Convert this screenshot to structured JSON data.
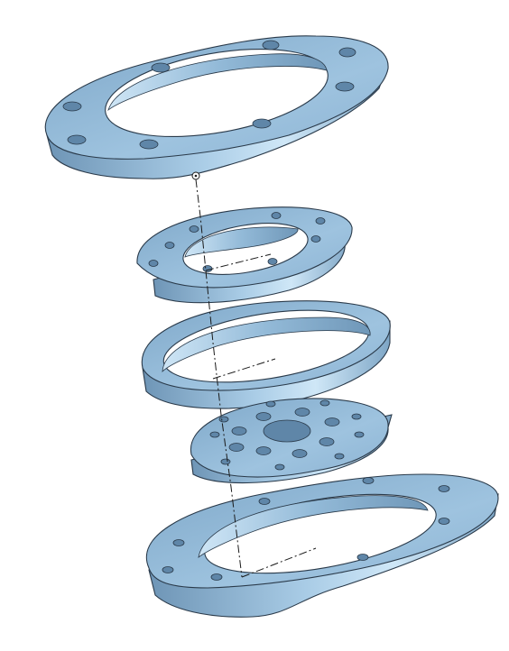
{
  "view": {
    "kind": "exploded-assembly",
    "part_color": "#8fb6d6",
    "part_highlight": "#c9e2f4",
    "part_shadow": "#5f86a8",
    "edge_color": "#2a3a4a",
    "background": "#ffffff"
  },
  "parts": [
    {
      "id": "top-flange",
      "bolt_holes": 8
    },
    {
      "id": "stepped-ring",
      "bolt_holes": 8
    },
    {
      "id": "bearing-ring",
      "bolt_holes": 0
    },
    {
      "id": "perforated-disc",
      "bolt_holes": 18
    },
    {
      "id": "bottom-flange",
      "bolt_holes": 8
    }
  ]
}
